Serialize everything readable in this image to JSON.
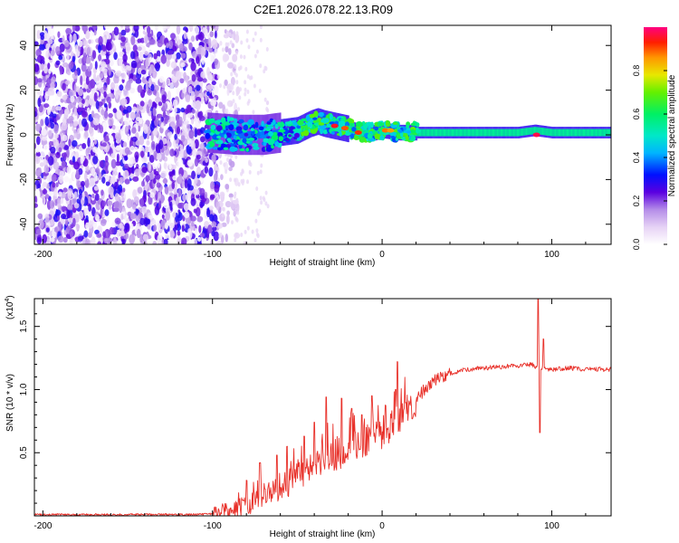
{
  "title": "C2E1.2026.078.22.13.R09",
  "colorbar": {
    "label": "Normalized spectral amplitude",
    "ticks": [
      "0.0",
      "0.2",
      "0.4",
      "0.6",
      "0.8"
    ],
    "tick_values": [
      0.0,
      0.2,
      0.4,
      0.6,
      0.8
    ],
    "range": [
      0.0,
      1.0
    ]
  },
  "chart_data": [
    {
      "type": "heatmap",
      "name": "spectrogram",
      "xlabel": "Height of straight line (km)",
      "ylabel": "Frequency (Hz)",
      "xlim": [
        -205,
        135
      ],
      "ylim": [
        -49,
        49
      ],
      "xticks": [
        -200,
        -100,
        0,
        100
      ],
      "xtick_labels": [
        "-200",
        "-100",
        "0",
        "100"
      ],
      "yticks": [
        -40,
        -20,
        0,
        20,
        40
      ],
      "ytick_labels": [
        "-40",
        "-20",
        "0",
        "20",
        "40"
      ],
      "noise_region_x": [
        -205,
        -97
      ],
      "signal_onset_x": -103,
      "carrier_track": {
        "x": [
          -103,
          -85,
          -70,
          -60,
          -50,
          -42,
          -38,
          -34,
          -28,
          -22,
          -16,
          -10,
          -4,
          0,
          10,
          20,
          40,
          60,
          80,
          90,
          100,
          135
        ],
        "y": [
          1,
          0,
          0,
          1,
          2,
          5,
          6,
          5,
          4,
          3,
          2,
          1,
          1,
          2,
          1,
          1,
          1,
          1,
          1,
          2,
          1,
          1
        ]
      },
      "peak_points": [
        {
          "x": -28,
          "y": 4,
          "amplitude": 0.95
        },
        {
          "x": -22,
          "y": 3,
          "amplitude": 0.9
        },
        {
          "x": -14,
          "y": 1,
          "amplitude": 0.92
        },
        {
          "x": 2,
          "y": 2,
          "amplitude": 0.88
        },
        {
          "x": 5,
          "y": 2,
          "amplitude": 0.85
        },
        {
          "x": 91,
          "y": 0,
          "amplitude": 0.97
        }
      ]
    },
    {
      "type": "line",
      "name": "snr",
      "xlabel": "Height of straight line (km)",
      "ylabel": "SNR (10 * v/v)",
      "y_multiplier": "(x10^4)",
      "xlim": [
        -205,
        135
      ],
      "ylim": [
        0,
        1.72
      ],
      "xticks": [
        -200,
        -100,
        0,
        100
      ],
      "xtick_labels": [
        "-200",
        "-100",
        "0",
        "100"
      ],
      "yticks": [
        0.5,
        1.0,
        1.5
      ],
      "ytick_labels": [
        "0.5",
        "1.0",
        "1.5"
      ],
      "color": "#e8312a",
      "series": [
        {
          "name": "SNR",
          "x": [
            -205,
            -150,
            -110,
            -100,
            -95,
            -90,
            -85,
            -80,
            -75,
            -70,
            -65,
            -60,
            -55,
            -50,
            -45,
            -40,
            -35,
            -30,
            -25,
            -20,
            -15,
            -10,
            -5,
            0,
            5,
            10,
            15,
            20,
            25,
            30,
            35,
            40,
            50,
            60,
            70,
            80,
            88,
            91,
            94,
            100,
            110,
            120,
            135
          ],
          "values": [
            0.01,
            0.01,
            0.01,
            0.015,
            0.02,
            0.04,
            0.06,
            0.08,
            0.12,
            0.16,
            0.2,
            0.23,
            0.26,
            0.3,
            0.34,
            0.38,
            0.43,
            0.47,
            0.5,
            0.53,
            0.56,
            0.59,
            0.62,
            0.66,
            0.7,
            0.76,
            0.84,
            0.92,
            1.0,
            1.06,
            1.1,
            1.13,
            1.16,
            1.17,
            1.18,
            1.19,
            1.2,
            1.18,
            1.17,
            1.16,
            1.17,
            1.16,
            1.16
          ]
        }
      ],
      "spikes": [
        {
          "x": -80,
          "y": 0.28
        },
        {
          "x": -72,
          "y": 0.42
        },
        {
          "x": -62,
          "y": 0.48
        },
        {
          "x": -56,
          "y": 0.55
        },
        {
          "x": -46,
          "y": 0.63
        },
        {
          "x": -40,
          "y": 0.74
        },
        {
          "x": -33,
          "y": 0.94
        },
        {
          "x": -24,
          "y": 0.93
        },
        {
          "x": -18,
          "y": 0.85
        },
        {
          "x": -12,
          "y": 0.8
        },
        {
          "x": -6,
          "y": 0.95
        },
        {
          "x": 8,
          "y": 1.0
        },
        {
          "x": 9,
          "y": 1.22
        },
        {
          "x": 92,
          "y": 1.72
        },
        {
          "x": 93,
          "y": 0.66
        },
        {
          "x": 95,
          "y": 1.4
        }
      ]
    }
  ]
}
